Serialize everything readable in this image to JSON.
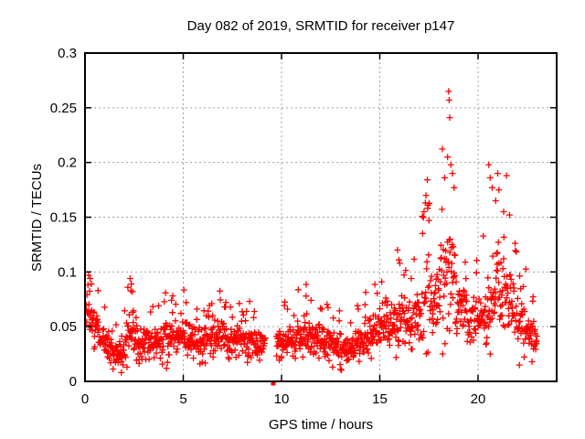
{
  "chart_data": {
    "type": "scatter",
    "title": "Day 082 of 2019, SRMTID for receiver p147",
    "xlabel": "GPS time / hours",
    "ylabel": "SRMTID / TECUs",
    "xlim": [
      0,
      24
    ],
    "ylim": [
      0,
      0.3
    ],
    "xticks": [
      0,
      5,
      10,
      15,
      20
    ],
    "xtick_labels": [
      "0",
      "5",
      "10",
      "15",
      "20"
    ],
    "yticks": [
      0,
      0.05,
      0.1,
      0.15,
      0.2,
      0.25,
      0.3
    ],
    "ytick_labels": [
      "0",
      "0.05",
      "0.1",
      "0.15",
      "0.2",
      "0.25",
      "0.3"
    ],
    "grid": true,
    "legend": "none",
    "marker": "plus",
    "data_gap_hours": [
      9.18,
      9.72
    ],
    "special_points": [
      {
        "x": 9.58,
        "y": 0,
        "marker": "filled-square"
      }
    ],
    "sampling": {
      "t_start": 0.05,
      "t_end": 23.0,
      "cadence_minutes": 1,
      "seed": 20190082
    },
    "envelope_t_med_spread": [
      [
        0.05,
        0.055,
        0.02
      ],
      [
        0.3,
        0.058,
        0.022
      ],
      [
        0.8,
        0.042,
        0.015
      ],
      [
        1.3,
        0.03,
        0.012
      ],
      [
        1.9,
        0.025,
        0.011
      ],
      [
        2.2,
        0.045,
        0.022
      ],
      [
        2.4,
        0.05,
        0.024
      ],
      [
        2.7,
        0.034,
        0.013
      ],
      [
        3.6,
        0.035,
        0.013
      ],
      [
        4.4,
        0.042,
        0.016
      ],
      [
        5.1,
        0.04,
        0.015
      ],
      [
        5.7,
        0.035,
        0.013
      ],
      [
        6.4,
        0.04,
        0.015
      ],
      [
        7.1,
        0.041,
        0.015
      ],
      [
        7.8,
        0.037,
        0.013
      ],
      [
        8.5,
        0.036,
        0.013
      ],
      [
        9.18,
        0.033,
        0.011
      ],
      [
        9.72,
        0.034,
        0.012
      ],
      [
        10.4,
        0.037,
        0.013
      ],
      [
        11.2,
        0.044,
        0.017
      ],
      [
        11.9,
        0.04,
        0.014
      ],
      [
        12.6,
        0.033,
        0.013
      ],
      [
        13.1,
        0.028,
        0.012
      ],
      [
        13.6,
        0.031,
        0.012
      ],
      [
        14.2,
        0.04,
        0.015
      ],
      [
        14.8,
        0.046,
        0.017
      ],
      [
        15.15,
        0.058,
        0.024
      ],
      [
        15.5,
        0.05,
        0.018
      ],
      [
        16.0,
        0.056,
        0.024
      ],
      [
        16.5,
        0.054,
        0.02
      ],
      [
        17.0,
        0.06,
        0.026
      ],
      [
        17.4,
        0.085,
        0.04
      ],
      [
        17.8,
        0.068,
        0.03
      ],
      [
        18.2,
        0.088,
        0.045
      ],
      [
        18.6,
        0.105,
        0.055
      ],
      [
        19.0,
        0.068,
        0.028
      ],
      [
        19.5,
        0.058,
        0.022
      ],
      [
        20.0,
        0.056,
        0.02
      ],
      [
        20.5,
        0.072,
        0.032
      ],
      [
        21.0,
        0.088,
        0.042
      ],
      [
        21.4,
        0.078,
        0.034
      ],
      [
        21.8,
        0.064,
        0.026
      ],
      [
        22.2,
        0.055,
        0.021
      ],
      [
        22.6,
        0.045,
        0.017
      ],
      [
        23.0,
        0.038,
        0.014
      ]
    ],
    "notable_points": [
      [
        0.18,
        0.097
      ],
      [
        0.26,
        0.094
      ],
      [
        0.33,
        0.089
      ],
      [
        2.3,
        0.094
      ],
      [
        2.36,
        0.089
      ],
      [
        2.42,
        0.082
      ],
      [
        4.4,
        0.074
      ],
      [
        5.15,
        0.072
      ],
      [
        6.45,
        0.071
      ],
      [
        7.15,
        0.068
      ],
      [
        8.37,
        0.073
      ],
      [
        10.3,
        0.066
      ],
      [
        11.25,
        0.078
      ],
      [
        11.5,
        0.074
      ],
      [
        12.05,
        0.066
      ],
      [
        13.9,
        0.066
      ],
      [
        14.25,
        0.07
      ],
      [
        15.1,
        0.091
      ],
      [
        15.9,
        0.12
      ],
      [
        15.97,
        0.111
      ],
      [
        16.6,
        0.094
      ],
      [
        17.25,
        0.155
      ],
      [
        17.35,
        0.17
      ],
      [
        17.45,
        0.161
      ],
      [
        17.5,
        0.147
      ],
      [
        18.3,
        0.186
      ],
      [
        18.45,
        0.205
      ],
      [
        18.5,
        0.265
      ],
      [
        18.53,
        0.257
      ],
      [
        18.56,
        0.241
      ],
      [
        18.62,
        0.198
      ],
      [
        18.7,
        0.19
      ],
      [
        18.78,
        0.177
      ],
      [
        19.35,
        0.109
      ],
      [
        20.55,
        0.198
      ],
      [
        20.62,
        0.186
      ],
      [
        20.72,
        0.177
      ],
      [
        20.9,
        0.165
      ],
      [
        21.0,
        0.19
      ],
      [
        21.06,
        0.175
      ],
      [
        21.3,
        0.155
      ],
      [
        21.45,
        0.188
      ],
      [
        21.6,
        0.152
      ],
      [
        1.85,
        0.008
      ],
      [
        4.15,
        0.012
      ],
      [
        12.6,
        0.013
      ],
      [
        13.0,
        0.011
      ],
      [
        22.1,
        0.015
      ],
      [
        22.75,
        0.018
      ]
    ]
  },
  "colors": {
    "marker": "#ff0000",
    "grid": "#a0a0a0",
    "axis": "#000000",
    "background": "#ffffff",
    "text": "#000000"
  }
}
